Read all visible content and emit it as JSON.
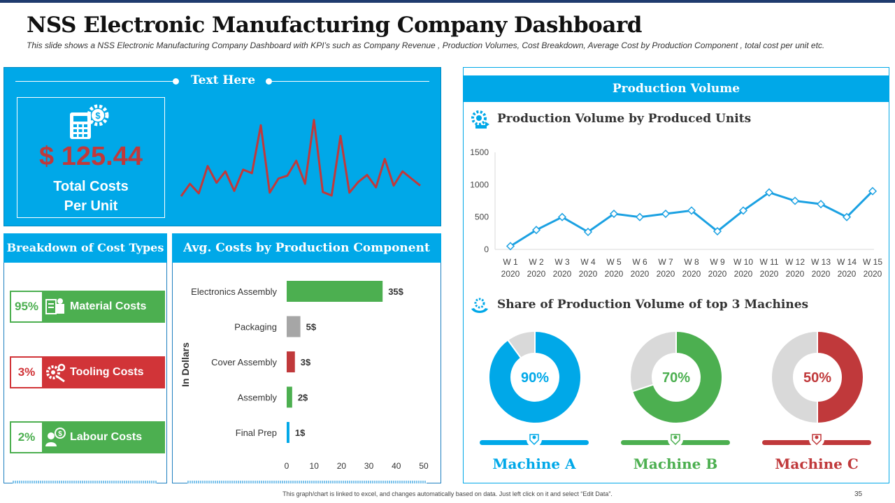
{
  "header": {
    "title": "NSS Electronic Manufacturing Company Dashboard",
    "subtitle": "This slide shows a NSS Electronic Manufacturing Company Dashboard with KPI’s such as Company Revenue , Production Volumes, Cost Breakdown, Average Cost by Production Component , total cost per unit etc."
  },
  "kpi_panel": {
    "heading": "Text Here",
    "value": "$ 125.44",
    "label_line1": "Total Costs",
    "label_line2": "Per Unit"
  },
  "breakdown": {
    "heading": "Breakdown of Cost Types",
    "items": [
      {
        "pct": "95%",
        "label": "Material Costs",
        "color": "#4caf50",
        "icon": "money-stack-icon"
      },
      {
        "pct": "3%",
        "label": "Tooling Costs",
        "color": "#d13438",
        "icon": "gears-icon"
      },
      {
        "pct": "2%",
        "label": "Labour Costs",
        "color": "#4caf50",
        "icon": "worker-coin-icon"
      }
    ]
  },
  "avg_costs": {
    "heading": "Avg. Costs by Production Component"
  },
  "production": {
    "heading": "Production Volume",
    "line_title": "Production Volume by Produced Units",
    "share_title": "Share of Production Volume of top 3 Machines",
    "machines": [
      {
        "name": "Machine A",
        "pct": "90%",
        "color": "#00a8e8"
      },
      {
        "name": "Machine B",
        "pct": "70%",
        "color": "#4caf50"
      },
      {
        "name": "Machine C",
        "pct": "50%",
        "color": "#c0393b"
      }
    ]
  },
  "footer": {
    "note": "This graph/chart is linked to excel, and changes automatically based on data. Just left click on it and select “Edit Data”.",
    "page": "35"
  },
  "colors": {
    "accent_blue": "#00a8e8",
    "green": "#4caf50",
    "red": "#c0393b",
    "grey": "#a6a6a6"
  },
  "chart_data": [
    {
      "type": "line",
      "title": "Text Here (sparkline)",
      "x": [
        1,
        2,
        3,
        4,
        5,
        6,
        7,
        8,
        9,
        10,
        11,
        12,
        13,
        14,
        15,
        16,
        17,
        18,
        19,
        20,
        21,
        22,
        23,
        24,
        25,
        26,
        27,
        28
      ],
      "values": [
        10,
        45,
        18,
        95,
        48,
        80,
        25,
        85,
        75,
        210,
        20,
        60,
        68,
        110,
        45,
        225,
        22,
        12,
        180,
        20,
        50,
        70,
        35,
        115,
        40,
        80,
        60,
        40
      ],
      "xlabel": "",
      "ylabel": "",
      "ylim": [
        0,
        240
      ]
    },
    {
      "type": "bar",
      "orientation": "horizontal",
      "title": "Avg. Costs by Production Component",
      "categories": [
        "Electronics Assembly",
        "Packaging",
        "Cover Assembly",
        "Assembly",
        "Final Prep"
      ],
      "values": [
        35,
        5,
        3,
        2,
        1
      ],
      "value_labels": [
        "35$",
        "5$",
        "3$",
        "2$",
        "1$"
      ],
      "bar_colors": [
        "#4caf50",
        "#a6a6a6",
        "#c0393b",
        "#4caf50",
        "#00a8e8"
      ],
      "xlabel": "",
      "ylabel": "In Dollars",
      "xlim": [
        0,
        50
      ],
      "xticks": [
        "0",
        "10",
        "20",
        "30",
        "40",
        "50"
      ]
    },
    {
      "type": "line",
      "title": "Production Volume by Produced Units",
      "categories": [
        "W 1 2020",
        "W 2 2020",
        "W 3 2020",
        "W 4 2020",
        "W 5 2020",
        "W 6 2020",
        "W 7 2020",
        "W 8 2020",
        "W 9 2020",
        "W 10 2020",
        "W 11 2020",
        "W 12 2020",
        "W 13 2020",
        "W 14 2020",
        "W 15 2020"
      ],
      "tick_lines": [
        [
          "W 1",
          "2020"
        ],
        [
          "W 2",
          "2020"
        ],
        [
          "W 3",
          "2020"
        ],
        [
          "W 4",
          "2020"
        ],
        [
          "W 5",
          "2020"
        ],
        [
          "W 6",
          "2020"
        ],
        [
          "W 7",
          "2020"
        ],
        [
          "W 8",
          "2020"
        ],
        [
          "W 9",
          "2020"
        ],
        [
          "W 10",
          "2020"
        ],
        [
          "W 11",
          "2020"
        ],
        [
          "W 12",
          "2020"
        ],
        [
          "W 13",
          "2020"
        ],
        [
          "W 14",
          "2020"
        ],
        [
          "W 15",
          "2020"
        ]
      ],
      "values": [
        50,
        300,
        500,
        270,
        550,
        500,
        550,
        600,
        280,
        600,
        880,
        750,
        700,
        500,
        900
      ],
      "yticks": [
        "0",
        "500",
        "1000",
        "1500"
      ],
      "ylim": [
        0,
        1500
      ],
      "xlabel": "",
      "ylabel": ""
    },
    {
      "type": "pie",
      "title": "Share of Production Volume of top 3 Machines",
      "series": [
        {
          "name": "Machine A",
          "values": [
            90,
            10
          ]
        },
        {
          "name": "Machine B",
          "values": [
            70,
            30
          ]
        },
        {
          "name": "Machine C",
          "values": [
            50,
            50
          ]
        }
      ]
    }
  ]
}
